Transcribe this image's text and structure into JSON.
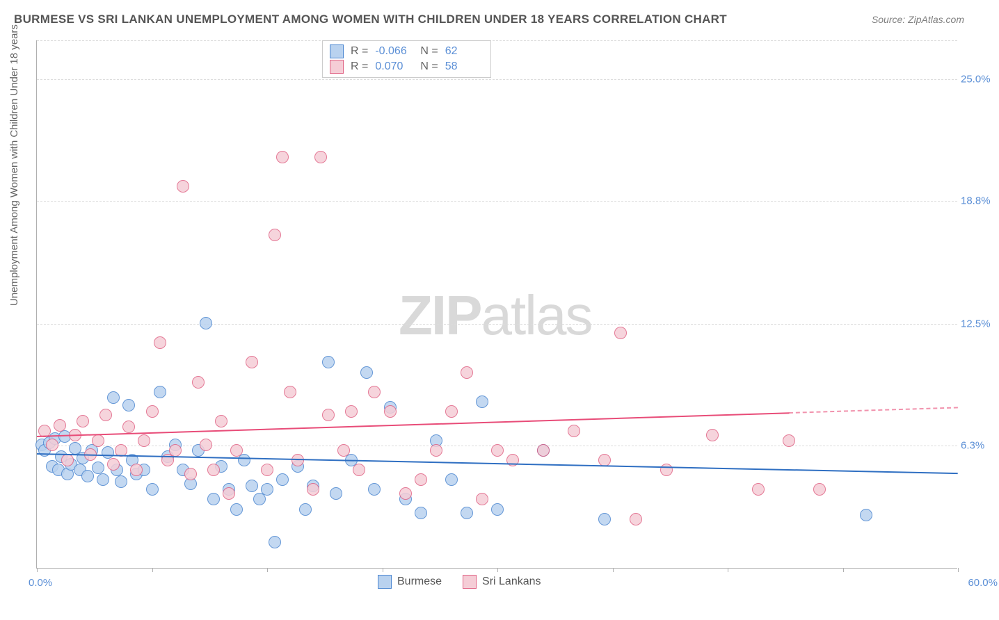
{
  "title": "BURMESE VS SRI LANKAN UNEMPLOYMENT AMONG WOMEN WITH CHILDREN UNDER 18 YEARS CORRELATION CHART",
  "source": "Source: ZipAtlas.com",
  "y_axis_label": "Unemployment Among Women with Children Under 18 years",
  "watermark_bold": "ZIP",
  "watermark_rest": "atlas",
  "chart": {
    "type": "scatter",
    "xlim": [
      0,
      60
    ],
    "ylim": [
      0,
      27
    ],
    "x_ticks": [
      0,
      7.5,
      15,
      22.5,
      30,
      37.5,
      45,
      52.5,
      60
    ],
    "y_grid": [
      6.3,
      12.5,
      18.8,
      25.0
    ],
    "y_tick_labels": [
      "6.3%",
      "12.5%",
      "18.8%",
      "25.0%"
    ],
    "x_corner_left": "0.0%",
    "x_corner_right": "60.0%",
    "background_color": "#ffffff",
    "grid_color": "#dcdcdc",
    "axis_color": "#b0b0b0",
    "axis_label_color": "#5b8fd6"
  },
  "series": [
    {
      "name": "Burmese",
      "fill": "#b9d2ef",
      "stroke": "#4a85d0",
      "trend_color": "#2f6fc2",
      "point_radius": 9,
      "R": "-0.066",
      "N": "62",
      "trend": {
        "x1": 0,
        "y1": 5.9,
        "x2": 60,
        "y2": 4.9,
        "ext_x2": 60
      },
      "points": [
        [
          0.3,
          6.3
        ],
        [
          0.5,
          6.0
        ],
        [
          0.8,
          6.4
        ],
        [
          1.0,
          5.2
        ],
        [
          1.2,
          6.6
        ],
        [
          1.4,
          5.0
        ],
        [
          1.6,
          5.7
        ],
        [
          1.8,
          6.7
        ],
        [
          2.0,
          4.8
        ],
        [
          2.2,
          5.3
        ],
        [
          2.5,
          6.1
        ],
        [
          2.8,
          5.0
        ],
        [
          3.0,
          5.6
        ],
        [
          3.3,
          4.7
        ],
        [
          3.6,
          6.0
        ],
        [
          4.0,
          5.1
        ],
        [
          4.3,
          4.5
        ],
        [
          4.6,
          5.9
        ],
        [
          5.0,
          8.7
        ],
        [
          5.2,
          5.0
        ],
        [
          5.5,
          4.4
        ],
        [
          6.0,
          8.3
        ],
        [
          6.2,
          5.5
        ],
        [
          6.5,
          4.8
        ],
        [
          7.0,
          5.0
        ],
        [
          7.5,
          4.0
        ],
        [
          8.0,
          9.0
        ],
        [
          8.5,
          5.7
        ],
        [
          9.0,
          6.3
        ],
        [
          9.5,
          5.0
        ],
        [
          10.0,
          4.3
        ],
        [
          10.5,
          6.0
        ],
        [
          11.0,
          12.5
        ],
        [
          11.5,
          3.5
        ],
        [
          12.0,
          5.2
        ],
        [
          12.5,
          4.0
        ],
        [
          13.0,
          3.0
        ],
        [
          13.5,
          5.5
        ],
        [
          14.0,
          4.2
        ],
        [
          14.5,
          3.5
        ],
        [
          15.0,
          4.0
        ],
        [
          15.5,
          1.3
        ],
        [
          16.0,
          4.5
        ],
        [
          17.0,
          5.2
        ],
        [
          17.5,
          3.0
        ],
        [
          18.0,
          4.2
        ],
        [
          19.0,
          10.5
        ],
        [
          19.5,
          3.8
        ],
        [
          20.5,
          5.5
        ],
        [
          21.5,
          10.0
        ],
        [
          22.0,
          4.0
        ],
        [
          23.0,
          8.2
        ],
        [
          24.0,
          3.5
        ],
        [
          25.0,
          2.8
        ],
        [
          26.0,
          6.5
        ],
        [
          27.0,
          4.5
        ],
        [
          28.0,
          2.8
        ],
        [
          29.0,
          8.5
        ],
        [
          30.0,
          3.0
        ],
        [
          33.0,
          6.0
        ],
        [
          37.0,
          2.5
        ],
        [
          54.0,
          2.7
        ]
      ]
    },
    {
      "name": "Sri Lankans",
      "fill": "#f5cdd6",
      "stroke": "#e06284",
      "trend_color": "#e84c78",
      "point_radius": 9,
      "R": "0.070",
      "N": "58",
      "trend": {
        "x1": 0,
        "y1": 6.8,
        "x2": 49,
        "y2": 8.0,
        "ext_x2": 60
      },
      "points": [
        [
          0.5,
          7.0
        ],
        [
          1.0,
          6.3
        ],
        [
          1.5,
          7.3
        ],
        [
          2.0,
          5.5
        ],
        [
          2.5,
          6.8
        ],
        [
          3.0,
          7.5
        ],
        [
          3.5,
          5.8
        ],
        [
          4.0,
          6.5
        ],
        [
          4.5,
          7.8
        ],
        [
          5.0,
          5.3
        ],
        [
          5.5,
          6.0
        ],
        [
          6.0,
          7.2
        ],
        [
          6.5,
          5.0
        ],
        [
          7.0,
          6.5
        ],
        [
          7.5,
          8.0
        ],
        [
          8.0,
          11.5
        ],
        [
          8.5,
          5.5
        ],
        [
          9.0,
          6.0
        ],
        [
          9.5,
          19.5
        ],
        [
          10.0,
          4.8
        ],
        [
          10.5,
          9.5
        ],
        [
          11.0,
          6.3
        ],
        [
          11.5,
          5.0
        ],
        [
          12.0,
          7.5
        ],
        [
          12.5,
          3.8
        ],
        [
          13.0,
          6.0
        ],
        [
          14.0,
          10.5
        ],
        [
          15.0,
          5.0
        ],
        [
          15.5,
          17.0
        ],
        [
          16.0,
          21.0
        ],
        [
          16.5,
          9.0
        ],
        [
          17.0,
          5.5
        ],
        [
          18.0,
          4.0
        ],
        [
          18.5,
          21.0
        ],
        [
          19.0,
          7.8
        ],
        [
          20.0,
          6.0
        ],
        [
          20.5,
          8.0
        ],
        [
          21.0,
          5.0
        ],
        [
          22.0,
          9.0
        ],
        [
          23.0,
          8.0
        ],
        [
          24.0,
          3.8
        ],
        [
          25.0,
          4.5
        ],
        [
          26.0,
          6.0
        ],
        [
          27.0,
          8.0
        ],
        [
          28.0,
          10.0
        ],
        [
          29.0,
          3.5
        ],
        [
          30.0,
          6.0
        ],
        [
          31.0,
          5.5
        ],
        [
          33.0,
          6.0
        ],
        [
          35.0,
          7.0
        ],
        [
          37.0,
          5.5
        ],
        [
          38.0,
          12.0
        ],
        [
          39.0,
          2.5
        ],
        [
          41.0,
          5.0
        ],
        [
          44.0,
          6.8
        ],
        [
          47.0,
          4.0
        ],
        [
          51.0,
          4.0
        ],
        [
          49.0,
          6.5
        ]
      ]
    }
  ],
  "stats_legend": {
    "r_label": "R =",
    "n_label": "N ="
  }
}
